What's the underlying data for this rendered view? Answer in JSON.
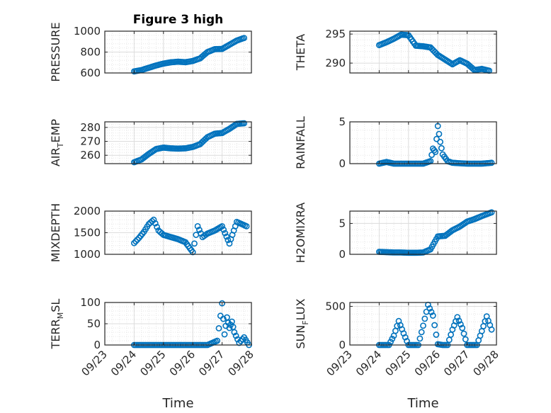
{
  "chart_data": [
    {
      "type": "scatter",
      "title": "Figure 3 high",
      "ylabel": "PRESSURE",
      "ylabel_sub": "",
      "xlabel": "",
      "xlim": [
        "09/23",
        "09/28"
      ],
      "ylim": [
        600,
        1000
      ],
      "yticks": [
        600,
        800,
        1000
      ],
      "xticks": [],
      "grid": true,
      "color": "#0072BD",
      "x": [
        "09/24 00:00",
        "09/24 06:00",
        "09/24 12:00",
        "09/24 18:00",
        "09/25 00:00",
        "09/25 06:00",
        "09/25 12:00",
        "09/25 18:00",
        "09/26 00:00",
        "09/26 06:00",
        "09/26 12:00",
        "09/26 18:00",
        "09/27 00:00",
        "09/27 06:00",
        "09/27 12:00",
        "09/27 18:00"
      ],
      "y": [
        615,
        628,
        650,
        672,
        690,
        702,
        708,
        703,
        715,
        740,
        800,
        828,
        830,
        870,
        910,
        935
      ]
    },
    {
      "type": "scatter",
      "title": "",
      "ylabel": "THETA",
      "ylabel_sub": "",
      "xlabel": "",
      "xlim": [
        "09/23",
        "09/28"
      ],
      "ylim": [
        288.3,
        295.5
      ],
      "yticks": [
        290,
        295
      ],
      "xticks": [],
      "grid": true,
      "color": "#0072BD",
      "x": [
        "09/24 00:00",
        "09/24 06:00",
        "09/24 12:00",
        "09/24 18:00",
        "09/25 00:00",
        "09/25 06:00",
        "09/25 12:00",
        "09/25 18:00",
        "09/26 00:00",
        "09/26 06:00",
        "09/26 12:00",
        "09/26 18:00",
        "09/27 00:00",
        "09/27 06:00",
        "09/27 12:00",
        "09/27 18:00"
      ],
      "y": [
        293.1,
        293.6,
        294.2,
        294.9,
        294.8,
        293.0,
        292.9,
        292.7,
        291.4,
        290.6,
        289.8,
        290.5,
        289.9,
        288.8,
        289.0,
        288.7
      ]
    },
    {
      "type": "scatter",
      "title": "",
      "ylabel": "AIR",
      "ylabel_sub": "T",
      "ylabel_rest": "EMP",
      "xlabel": "",
      "xlim": [
        "09/23",
        "09/28"
      ],
      "ylim": [
        254,
        284
      ],
      "yticks": [
        260,
        270,
        280
      ],
      "xticks": [],
      "grid": true,
      "color": "#0072BD",
      "x": [
        "09/24 00:00",
        "09/24 06:00",
        "09/24 12:00",
        "09/24 18:00",
        "09/25 00:00",
        "09/25 06:00",
        "09/25 12:00",
        "09/25 18:00",
        "09/26 00:00",
        "09/26 06:00",
        "09/26 12:00",
        "09/26 18:00",
        "09/27 00:00",
        "09/27 06:00",
        "09/27 12:00",
        "09/27 18:00"
      ],
      "y": [
        255,
        257,
        261,
        264.5,
        265.5,
        265,
        264.8,
        265,
        266,
        268,
        273,
        275.5,
        276,
        279,
        282.5,
        283
      ]
    },
    {
      "type": "scatter",
      "title": "",
      "ylabel": "RAINFALL",
      "ylabel_sub": "",
      "xlabel": "",
      "xlim": [
        "09/23",
        "09/28"
      ],
      "ylim": [
        0,
        5
      ],
      "yticks": [
        0,
        5
      ],
      "xticks": [],
      "grid": true,
      "color": "#0072BD",
      "x": [
        "09/24 00:00",
        "09/24 06:00",
        "09/24 12:00",
        "09/25 00:00",
        "09/25 12:00",
        "09/25 18:00",
        "09/25 20:00",
        "09/25 22:00",
        "09/26 00:00",
        "09/26 02:00",
        "09/26 04:00",
        "09/26 08:00",
        "09/26 12:00",
        "09/27 00:00",
        "09/27 12:00",
        "09/27 20:00"
      ],
      "y": [
        0,
        0.2,
        0,
        0,
        0,
        0.3,
        1.8,
        1.4,
        4.5,
        2.6,
        1.1,
        0.3,
        0.1,
        0,
        0,
        0.1
      ]
    },
    {
      "type": "scatter",
      "title": "",
      "ylabel": "MIXDEPTH",
      "ylabel_sub": "",
      "xlabel": "",
      "xlim": [
        "09/23",
        "09/28"
      ],
      "ylim": [
        1000,
        2000
      ],
      "yticks": [
        1000,
        1500,
        2000
      ],
      "xticks": [],
      "grid": true,
      "color": "#0072BD",
      "x": [
        "09/24 00:00",
        "09/24 04:00",
        "09/24 08:00",
        "09/24 12:00",
        "09/24 16:00",
        "09/24 20:00",
        "09/25 00:00",
        "09/25 06:00",
        "09/25 12:00",
        "09/25 18:00",
        "09/26 00:00",
        "09/26 04:00",
        "09/26 08:00",
        "09/26 12:00",
        "09/26 18:00",
        "09/27 00:00",
        "09/27 06:00",
        "09/27 12:00",
        "09/27 20:00"
      ],
      "y": [
        1260,
        1380,
        1520,
        1700,
        1800,
        1550,
        1450,
        1400,
        1350,
        1280,
        1050,
        1650,
        1400,
        1480,
        1550,
        1650,
        1250,
        1750,
        1650
      ]
    },
    {
      "type": "scatter",
      "title": "",
      "ylabel": "H2OMIXRA",
      "ylabel_sub": "",
      "xlabel": "",
      "xlim": [
        "09/23",
        "09/28"
      ],
      "ylim": [
        0,
        7
      ],
      "yticks": [
        0,
        5
      ],
      "xticks": [],
      "grid": true,
      "color": "#0072BD",
      "x": [
        "09/24 00:00",
        "09/24 06:00",
        "09/24 12:00",
        "09/24 18:00",
        "09/25 00:00",
        "09/25 06:00",
        "09/25 12:00",
        "09/25 18:00",
        "09/26 00:00",
        "09/26 06:00",
        "09/26 12:00",
        "09/26 18:00",
        "09/27 00:00",
        "09/27 06:00",
        "09/27 12:00",
        "09/27 20:00"
      ],
      "y": [
        0.4,
        0.35,
        0.3,
        0.3,
        0.25,
        0.25,
        0.3,
        0.8,
        2.9,
        3.0,
        3.9,
        4.5,
        5.3,
        5.7,
        6.2,
        6.8
      ]
    },
    {
      "type": "scatter",
      "title": "",
      "ylabel": "TERR",
      "ylabel_sub": "M",
      "ylabel_rest": "SL",
      "xlabel": "Time",
      "xlim": [
        "09/23",
        "09/28"
      ],
      "ylim": [
        0,
        100
      ],
      "yticks": [
        0,
        50,
        100
      ],
      "xticks": [
        "09/23",
        "09/24",
        "09/25",
        "09/26",
        "09/27",
        "09/28"
      ],
      "grid": true,
      "color": "#0072BD",
      "x": [
        "09/24 00:00",
        "09/24 12:00",
        "09/25 00:00",
        "09/25 12:00",
        "09/26 00:00",
        "09/26 12:00",
        "09/26 20:00",
        "09/27 00:00",
        "09/27 02:00",
        "09/27 04:00",
        "09/27 06:00",
        "09/27 08:00",
        "09/27 10:00",
        "09/27 14:00",
        "09/27 18:00",
        "09/27 22:00"
      ],
      "y": [
        0,
        0,
        0,
        0,
        0,
        0,
        10,
        98,
        25,
        65,
        40,
        55,
        30,
        5,
        18,
        0
      ]
    },
    {
      "type": "scatter",
      "title": "",
      "ylabel": "SUN",
      "ylabel_sub": "F",
      "ylabel_rest": "LUX",
      "xlabel": "Time",
      "xlim": [
        "09/23",
        "09/28"
      ],
      "ylim": [
        0,
        550
      ],
      "yticks": [
        0,
        500
      ],
      "xticks": [
        "09/23",
        "09/24",
        "09/25",
        "09/26",
        "09/27",
        "09/28"
      ],
      "grid": true,
      "color": "#0072BD",
      "x": [
        "09/24 00:00",
        "09/24 04:00",
        "09/24 08:00",
        "09/24 12:00",
        "09/24 16:00",
        "09/24 20:00",
        "09/25 00:00",
        "09/25 04:00",
        "09/25 08:00",
        "09/25 12:00",
        "09/25 16:00",
        "09/25 20:00",
        "09/26 00:00",
        "09/26 04:00",
        "09/26 08:00",
        "09/26 12:00",
        "09/26 16:00",
        "09/26 20:00",
        "09/27 00:00",
        "09/27 04:00",
        "09/27 08:00",
        "09/27 12:00",
        "09/27 16:00",
        "09/27 20:00"
      ],
      "y": [
        0,
        0,
        0,
        120,
        310,
        150,
        0,
        0,
        0,
        250,
        520,
        380,
        10,
        0,
        0,
        200,
        360,
        220,
        0,
        0,
        0,
        180,
        370,
        200
      ]
    }
  ]
}
